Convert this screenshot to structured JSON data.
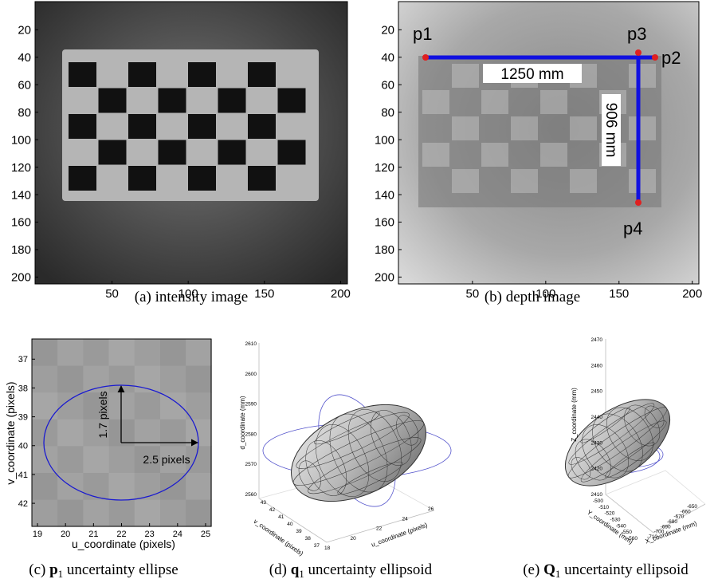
{
  "panels": [
    {
      "caption": {
        "label": "(a)",
        "text": "intensity image"
      },
      "xlim": [
        -0.5,
        204.5
      ],
      "ylim": [
        -0.5,
        205
      ],
      "xticks": [
        50,
        100,
        150,
        200
      ],
      "yticks": [
        20,
        40,
        60,
        80,
        100,
        120,
        140,
        160,
        180,
        200
      ]
    },
    {
      "caption": {
        "label": "(b)",
        "text": "depth image"
      },
      "xlim": [
        -0.5,
        204.5
      ],
      "ylim": [
        -0.5,
        205
      ],
      "xticks": [
        50,
        100,
        150,
        200
      ],
      "yticks": [
        20,
        40,
        60,
        80,
        100,
        120,
        140,
        160,
        180,
        200
      ],
      "annotations": {
        "points": [
          "p1",
          "p2",
          "p3",
          "p4"
        ],
        "width": "1250 mm",
        "height": "906 mm"
      }
    },
    {
      "caption": {
        "label": "(c)",
        "symbol": "p",
        "subscript": "1",
        "text": "uncertainty ellipse"
      },
      "xlabel": "u_coordinate (pixels)",
      "ylabel": "v_coordinate (pixels)",
      "xlim": [
        18.8,
        25.2
      ],
      "ylim": [
        36.3,
        42.8
      ],
      "xticks": [
        19,
        20,
        21,
        22,
        23,
        24,
        25
      ],
      "yticks": [
        37,
        38,
        39,
        40,
        41,
        42
      ],
      "annotations": {
        "vertical": "1.7 pixels",
        "horizontal": "2.5 pixels"
      }
    },
    {
      "caption": {
        "label": "(d)",
        "symbol": "q",
        "subscript": "1",
        "text": "uncertainty ellipsoid"
      },
      "xlabel": "u_coordinate (pixels)",
      "ylabel": "v_coordinate (pixels)",
      "zlabel": "d_coordinate (mm)",
      "xticks": [
        18,
        20,
        22,
        24,
        26
      ],
      "yticks": [
        43,
        42,
        41,
        40,
        39,
        38,
        37
      ],
      "zticks": [
        2610,
        2600,
        2590,
        2580,
        2570,
        2560
      ]
    },
    {
      "caption": {
        "label": "(e)",
        "symbol": "Q",
        "subscript": "1",
        "text": "uncertainty ellipsoid"
      },
      "xlabel": "X_coordinate (mm)",
      "ylabel": "Y_coordinate (mm)",
      "zlabel": "Z_coordinate (mm)",
      "xticks": [
        -710,
        -700,
        -690,
        -680,
        -670,
        -660,
        -650
      ],
      "yticks": [
        -500,
        -510,
        -520,
        -530,
        -540,
        -550,
        -560
      ],
      "zticks": [
        2470,
        2460,
        2450,
        2440,
        2430,
        2420,
        2410
      ]
    }
  ]
}
